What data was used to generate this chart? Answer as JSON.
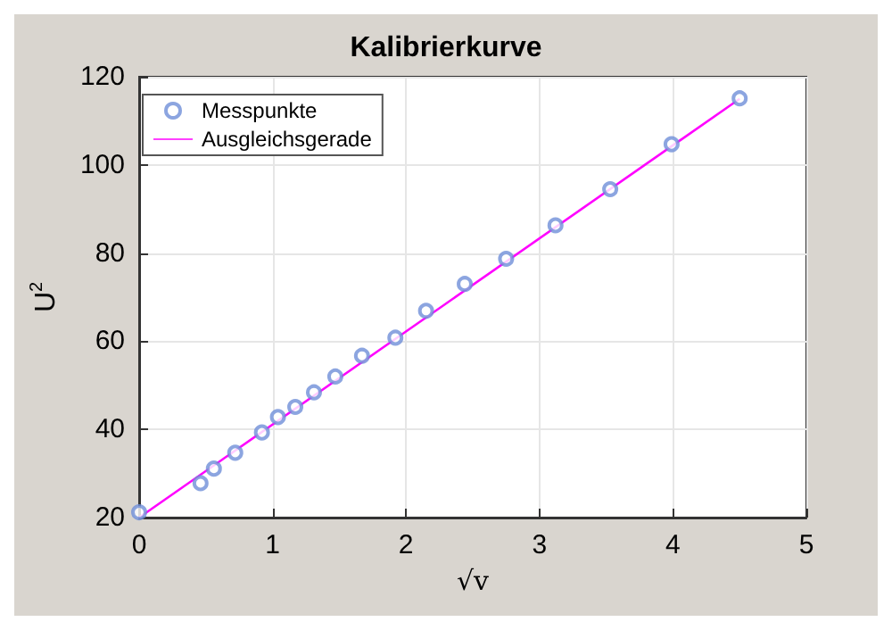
{
  "chart_data": {
    "type": "scatter",
    "title": "Kalibrierkurve",
    "xlabel": "√v",
    "ylabel": "U$^{2}$",
    "xlim": [
      0,
      5
    ],
    "xticks": [
      0,
      1,
      2,
      3,
      4,
      5
    ],
    "ylim": [
      20,
      120
    ],
    "yticks": [
      20,
      40,
      60,
      80,
      100,
      120
    ],
    "grid": true,
    "legend": "top left",
    "series": [
      {
        "name": "Messpunkte",
        "marker": "circle",
        "color": "#6f8fd8",
        "x": [
          0,
          0.46,
          0.56,
          0.72,
          0.92,
          1.04,
          1.17,
          1.31,
          1.47,
          1.67,
          1.92,
          2.15,
          2.44,
          2.75,
          3.12,
          3.53,
          3.99,
          4.5
        ],
        "values": [
          21.2,
          27.8,
          31.1,
          34.7,
          39.3,
          42.8,
          45.1,
          48.4,
          52.0,
          56.7,
          60.8,
          66.9,
          73.0,
          78.7,
          86.3,
          94.5,
          104.7,
          115.1
        ]
      },
      {
        "name": "Ausgleichsgerade",
        "type": "line",
        "marker": "none",
        "line_style": "solid",
        "color": "#ff00ff",
        "x": [
          0,
          4.5
        ],
        "values": [
          20.0,
          115.0
        ]
      }
    ]
  }
}
